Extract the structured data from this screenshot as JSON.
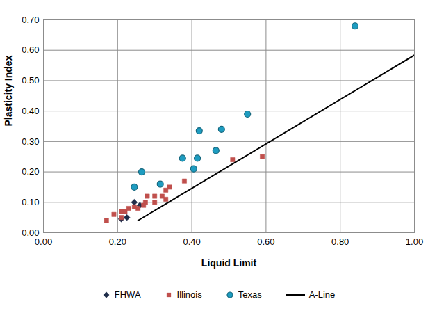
{
  "chart_data": {
    "type": "scatter",
    "x_label": "Liquid Limit",
    "y_label": "Plasticity Index",
    "xlim": [
      0,
      1.0
    ],
    "ylim": [
      0,
      0.7
    ],
    "xticks": [
      {
        "value": 0,
        "label": "0.00"
      },
      {
        "value": 0.2,
        "label": "0.20"
      },
      {
        "value": 0.4,
        "label": "0.40"
      },
      {
        "value": 0.6,
        "label": "0.60"
      },
      {
        "value": 0.8,
        "label": "0.80"
      },
      {
        "value": 1.0,
        "label": "1.00"
      }
    ],
    "yticks": [
      {
        "value": 0,
        "label": "0.00"
      },
      {
        "value": 0.1,
        "label": "0.10"
      },
      {
        "value": 0.2,
        "label": "0.20"
      },
      {
        "value": 0.3,
        "label": "0.30"
      },
      {
        "value": 0.4,
        "label": "0.40"
      },
      {
        "value": 0.5,
        "label": "0.50"
      },
      {
        "value": 0.6,
        "label": "0.60"
      },
      {
        "value": 0.7,
        "label": "0.70"
      }
    ],
    "grid": true,
    "legend": "bottom",
    "series": [
      {
        "name": "FHWA",
        "type": "scatter",
        "marker": "diamond",
        "color": "#1f2d4a",
        "x": [
          0.21,
          0.225,
          0.245,
          0.26
        ],
        "values": [
          0.045,
          0.05,
          0.1,
          0.09
        ]
      },
      {
        "name": "Illinois",
        "type": "scatter",
        "marker": "square",
        "color": "#c0504d",
        "x": [
          0.17,
          0.19,
          0.21,
          0.21,
          0.22,
          0.23,
          0.245,
          0.255,
          0.27,
          0.275,
          0.28,
          0.3,
          0.3,
          0.32,
          0.33,
          0.33,
          0.34,
          0.38,
          0.51,
          0.59
        ],
        "values": [
          0.04,
          0.06,
          0.05,
          0.07,
          0.07,
          0.08,
          0.085,
          0.08,
          0.09,
          0.1,
          0.12,
          0.1,
          0.12,
          0.12,
          0.11,
          0.14,
          0.15,
          0.17,
          0.24,
          0.25
        ]
      },
      {
        "name": "Texas",
        "type": "scatter",
        "marker": "circle",
        "color": "#1e9cc0",
        "x": [
          0.84,
          0.55,
          0.48,
          0.42,
          0.465,
          0.375,
          0.415,
          0.405,
          0.265,
          0.315,
          0.245
        ],
        "values": [
          0.68,
          0.39,
          0.34,
          0.335,
          0.27,
          0.245,
          0.245,
          0.21,
          0.2,
          0.16,
          0.15
        ]
      },
      {
        "name": "A-Line",
        "type": "line",
        "line_style": "solid",
        "color": "#000000",
        "x": [
          0.255,
          1.0
        ],
        "values": [
          0.04,
          0.584
        ]
      }
    ]
  }
}
